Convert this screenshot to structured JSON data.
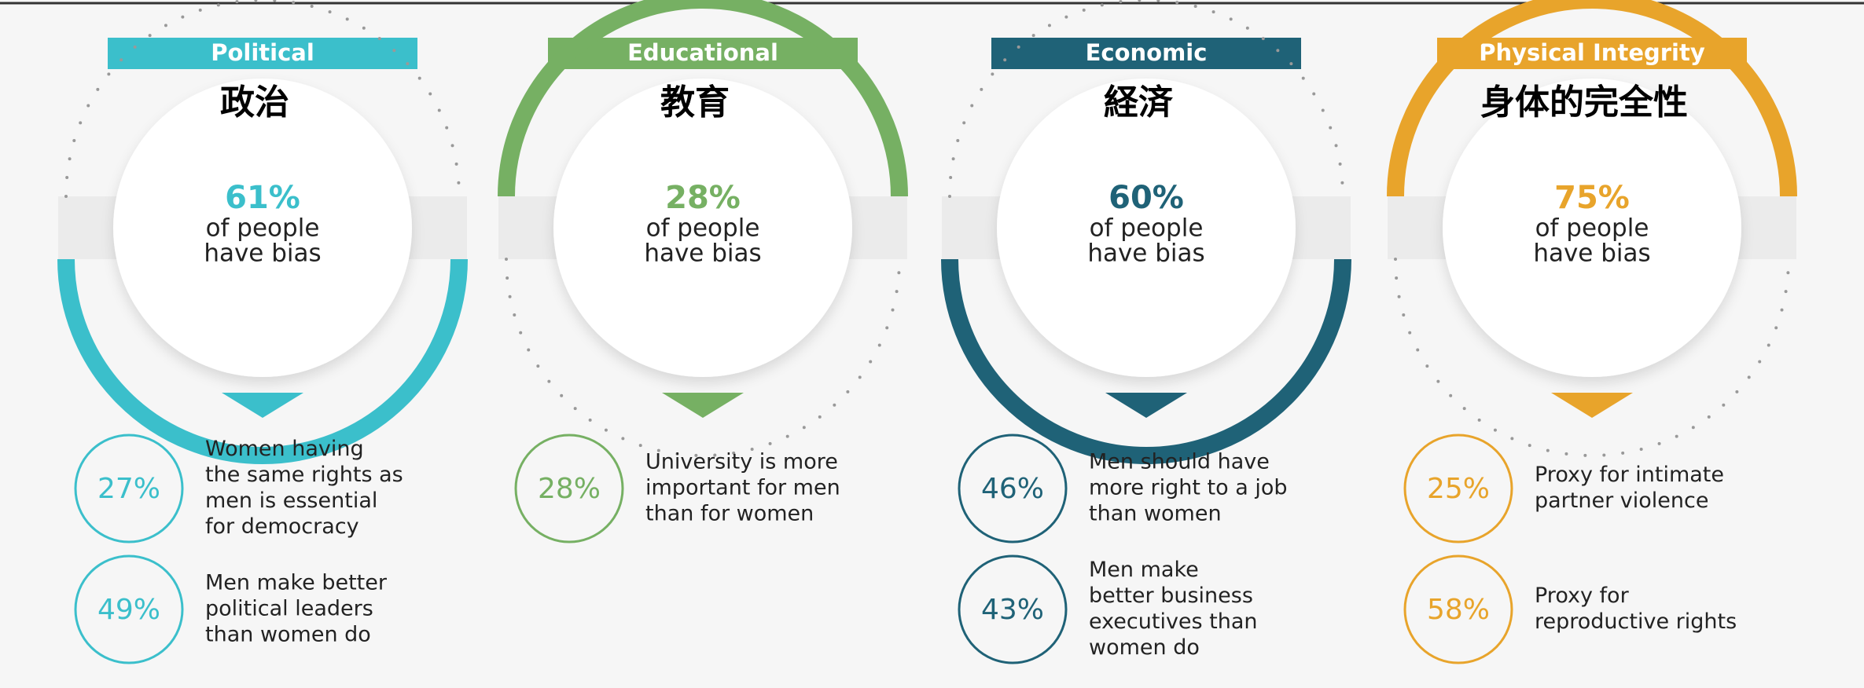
{
  "panels": [
    {
      "category": "Political",
      "label": "政治",
      "color": "#3bbfcb",
      "arc": "bottom",
      "stat": "61%",
      "stat_text": [
        "of people",
        "have bias"
      ],
      "items": [
        {
          "stat": "27%",
          "text": [
            "Women having",
            "the same rights as",
            "men is essential",
            "for democracy"
          ]
        },
        {
          "stat": "49%",
          "text": [
            "Men make better",
            "political leaders",
            "than women do"
          ]
        }
      ]
    },
    {
      "category": "Educational",
      "label": "教育",
      "color": "#76b063",
      "arc": "top",
      "stat": "28%",
      "stat_text": [
        "of people",
        "have bias"
      ],
      "items": [
        {
          "stat": "28%",
          "text": [
            "University is more",
            "important for men",
            "than for women"
          ]
        }
      ]
    },
    {
      "category": "Economic",
      "label": "経済",
      "color": "#1f6277",
      "arc": "bottom",
      "stat": "60%",
      "stat_text": [
        "of people",
        "have bias"
      ],
      "items": [
        {
          "stat": "46%",
          "text": [
            "Men should have",
            "more right to a job",
            "than women"
          ]
        },
        {
          "stat": "43%",
          "text": [
            "Men make",
            "better business",
            "executives than",
            "women do"
          ]
        }
      ]
    },
    {
      "category": "Physical Integrity",
      "label": "身体的完全性",
      "color": "#e8a42b",
      "arc": "top",
      "stat": "75%",
      "stat_text": [
        "of people",
        "have bias"
      ],
      "items": [
        {
          "stat": "25%",
          "text": [
            "Proxy for intimate",
            "partner violence"
          ]
        },
        {
          "stat": "58%",
          "text": [
            "Proxy for",
            "reproductive rights"
          ]
        }
      ]
    }
  ]
}
